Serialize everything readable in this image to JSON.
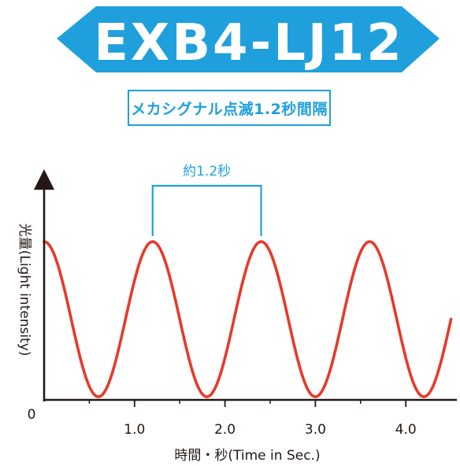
{
  "header": {
    "model": "EXB4-LJ12",
    "subtitle": "メカシグナル点滅1.2秒間隔",
    "accent_color": "#1fa0dc"
  },
  "chart_data": {
    "type": "line",
    "title": "",
    "xlabel": "時間・秒(Time in Sec.)",
    "ylabel": "光量(Light intensity)",
    "origin_label": "0",
    "x_ticks": [
      1.0,
      2.0,
      3.0,
      4.0
    ],
    "x_tick_labels": [
      "1.0",
      "2.0",
      "3.0",
      "4.0"
    ],
    "x_minor_ticks": [
      0.5,
      1.5,
      2.5,
      3.5
    ],
    "xlim": [
      0,
      4.5
    ],
    "period_seconds": 1.2,
    "peaks_x": [
      0.0,
      1.2,
      2.4,
      3.6
    ],
    "troughs_x": [
      0.6,
      1.8,
      3.0,
      4.2
    ],
    "annotation": {
      "label": "約1.2秒",
      "from_x": 1.2,
      "to_x": 2.4
    },
    "series": [
      {
        "color": "#e63a2a"
      }
    ],
    "axis_color": "#231815"
  }
}
